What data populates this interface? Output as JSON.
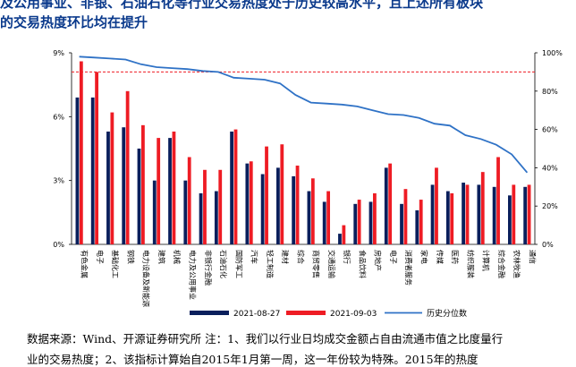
{
  "headline": {
    "line1": "及公用事业、非银、石油石化等行业交易热度处于历史较高水平，且上述所有板块",
    "line2": "的交易热度环比均在提升"
  },
  "footnote": {
    "line1": "数据来源：Wind、开源证券研究所  注：1、我们以行业日均成交金额占自由流通市值之比度量行",
    "line2": "业的交易热度；2、该指标计算始自2015年1月第一周，这一年份较为特殊。2015年的热度"
  },
  "colors": {
    "series1": "#0a1f5c",
    "series2": "#ee1c24",
    "line": "#2f72c6",
    "dashed": "#ee1c24"
  },
  "chart_data": {
    "type": "bar",
    "categories": [
      "有色金属",
      "电子",
      "基础化工",
      "钢铁",
      "电力设备及新能源",
      "建筑",
      "机械",
      "电力及公用事业",
      "非银行金融",
      "石油石化",
      "国防军工",
      "汽车",
      "轻工制造",
      "建材",
      "综合",
      "商贸零售",
      "交通运输",
      "银行",
      "食品饮料",
      "房地产",
      "电子",
      "消费者服务",
      "家电",
      "传媒",
      "医药",
      "纺织服装",
      "计算机",
      "综合金融",
      "农林牧渔",
      "通信"
    ],
    "series": [
      {
        "name": "2021-08-27",
        "axis": "left",
        "values": [
          6.9,
          6.9,
          5.3,
          5.5,
          4.5,
          3.0,
          5.0,
          3.0,
          2.4,
          2.5,
          5.3,
          3.8,
          3.3,
          3.6,
          3.2,
          2.5,
          2.0,
          0.5,
          1.9,
          2.0,
          3.6,
          1.9,
          1.6,
          2.8,
          2.5,
          2.9,
          2.8,
          2.7,
          2.3,
          2.7
        ]
      },
      {
        "name": "2021-09-03",
        "axis": "left",
        "values": [
          8.6,
          8.1,
          6.2,
          7.2,
          5.6,
          5.0,
          5.3,
          4.1,
          3.5,
          3.5,
          5.4,
          3.9,
          4.6,
          4.7,
          3.7,
          3.1,
          2.5,
          0.9,
          2.1,
          2.4,
          3.8,
          2.6,
          2.1,
          3.6,
          2.4,
          2.8,
          3.4,
          4.1,
          2.8,
          2.8
        ]
      },
      {
        "name": "历史分位数",
        "axis": "right",
        "type": "line",
        "values": [
          98,
          97.5,
          97,
          96.5,
          94,
          92.5,
          92,
          91.5,
          90.5,
          90,
          87,
          86.5,
          86,
          84,
          78,
          74,
          73.5,
          73,
          72,
          70,
          68,
          67.5,
          66,
          63,
          62,
          57,
          55,
          52,
          47,
          37.5
        ]
      }
    ],
    "left_axis": {
      "ylim": [
        0,
        9
      ],
      "ticks": [
        "0%",
        "3%",
        "6%",
        "9%"
      ]
    },
    "right_axis": {
      "ylim": [
        0,
        100
      ],
      "ticks": [
        "0%",
        "20%",
        "40%",
        "60%",
        "80%",
        "100%"
      ]
    },
    "reference_line": {
      "axis": "right",
      "value": 90
    },
    "legend_position": "bottom",
    "grid": false
  }
}
